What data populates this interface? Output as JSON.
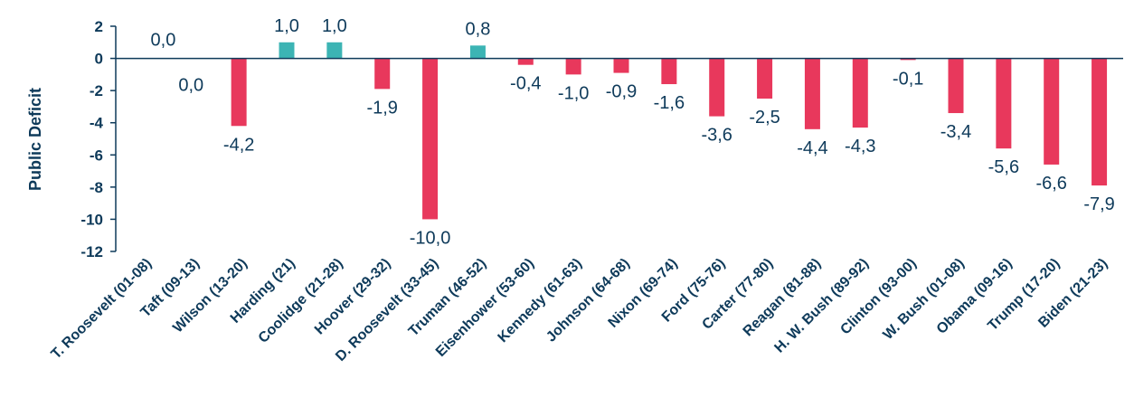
{
  "chart_data": {
    "type": "bar",
    "title": "",
    "xlabel": "",
    "ylabel": "Public Deficit",
    "ylim": [
      -12,
      2
    ],
    "yticks": [
      2,
      0,
      -2,
      -4,
      -6,
      -8,
      -10,
      -12
    ],
    "ytick_labels": [
      "2",
      "0",
      "-2",
      "-4",
      "-6",
      "-8",
      "-10",
      "-12"
    ],
    "grid": false,
    "legend": "none",
    "colors": {
      "positive": "#3cb4b4",
      "negative": "#e8385c",
      "axis": "#0e3a5a",
      "text": "#0e3a5a"
    },
    "categories": [
      "T. Roosevelt (01-08)",
      "Taft (09-13)",
      "Wilson (13-20)",
      "Harding (21)",
      "Coolidge (21-28)",
      "Hoover (29-32)",
      "D. Roosevelt (33-45)",
      "Truman (46-52)",
      "Eisenhower (53-60)",
      "Kennedy (61-63)",
      "Johnson (64-68)",
      "Nixon (69-74)",
      "Ford (75-76)",
      "Carter (77-80)",
      "Reagan (81-88)",
      "H. W. Bush (89-92)",
      "Clinton (93-00)",
      "W. Bush (01-08)",
      "Obama (09-16)",
      "Trump (17-20)",
      "Biden (21-23)"
    ],
    "values": [
      0.0,
      0.0,
      -4.2,
      1.0,
      1.0,
      -1.9,
      -10.0,
      0.8,
      -0.4,
      -1.0,
      -0.9,
      -1.6,
      -3.6,
      -2.5,
      -4.4,
      -4.3,
      -0.1,
      -3.4,
      -5.6,
      -6.6,
      -7.9
    ],
    "value_labels": [
      "0,0",
      "0,0",
      "-4,2",
      "1,0",
      "1,0",
      "-1,9",
      "-10,0",
      "0,8",
      "-0,4",
      "-1,0",
      "-0,9",
      "-1,6",
      "-3,6",
      "-2,5",
      "-4,4",
      "-4,3",
      "-0,1",
      "-3,4",
      "-5,6",
      "-6,6",
      "-7,9"
    ]
  }
}
